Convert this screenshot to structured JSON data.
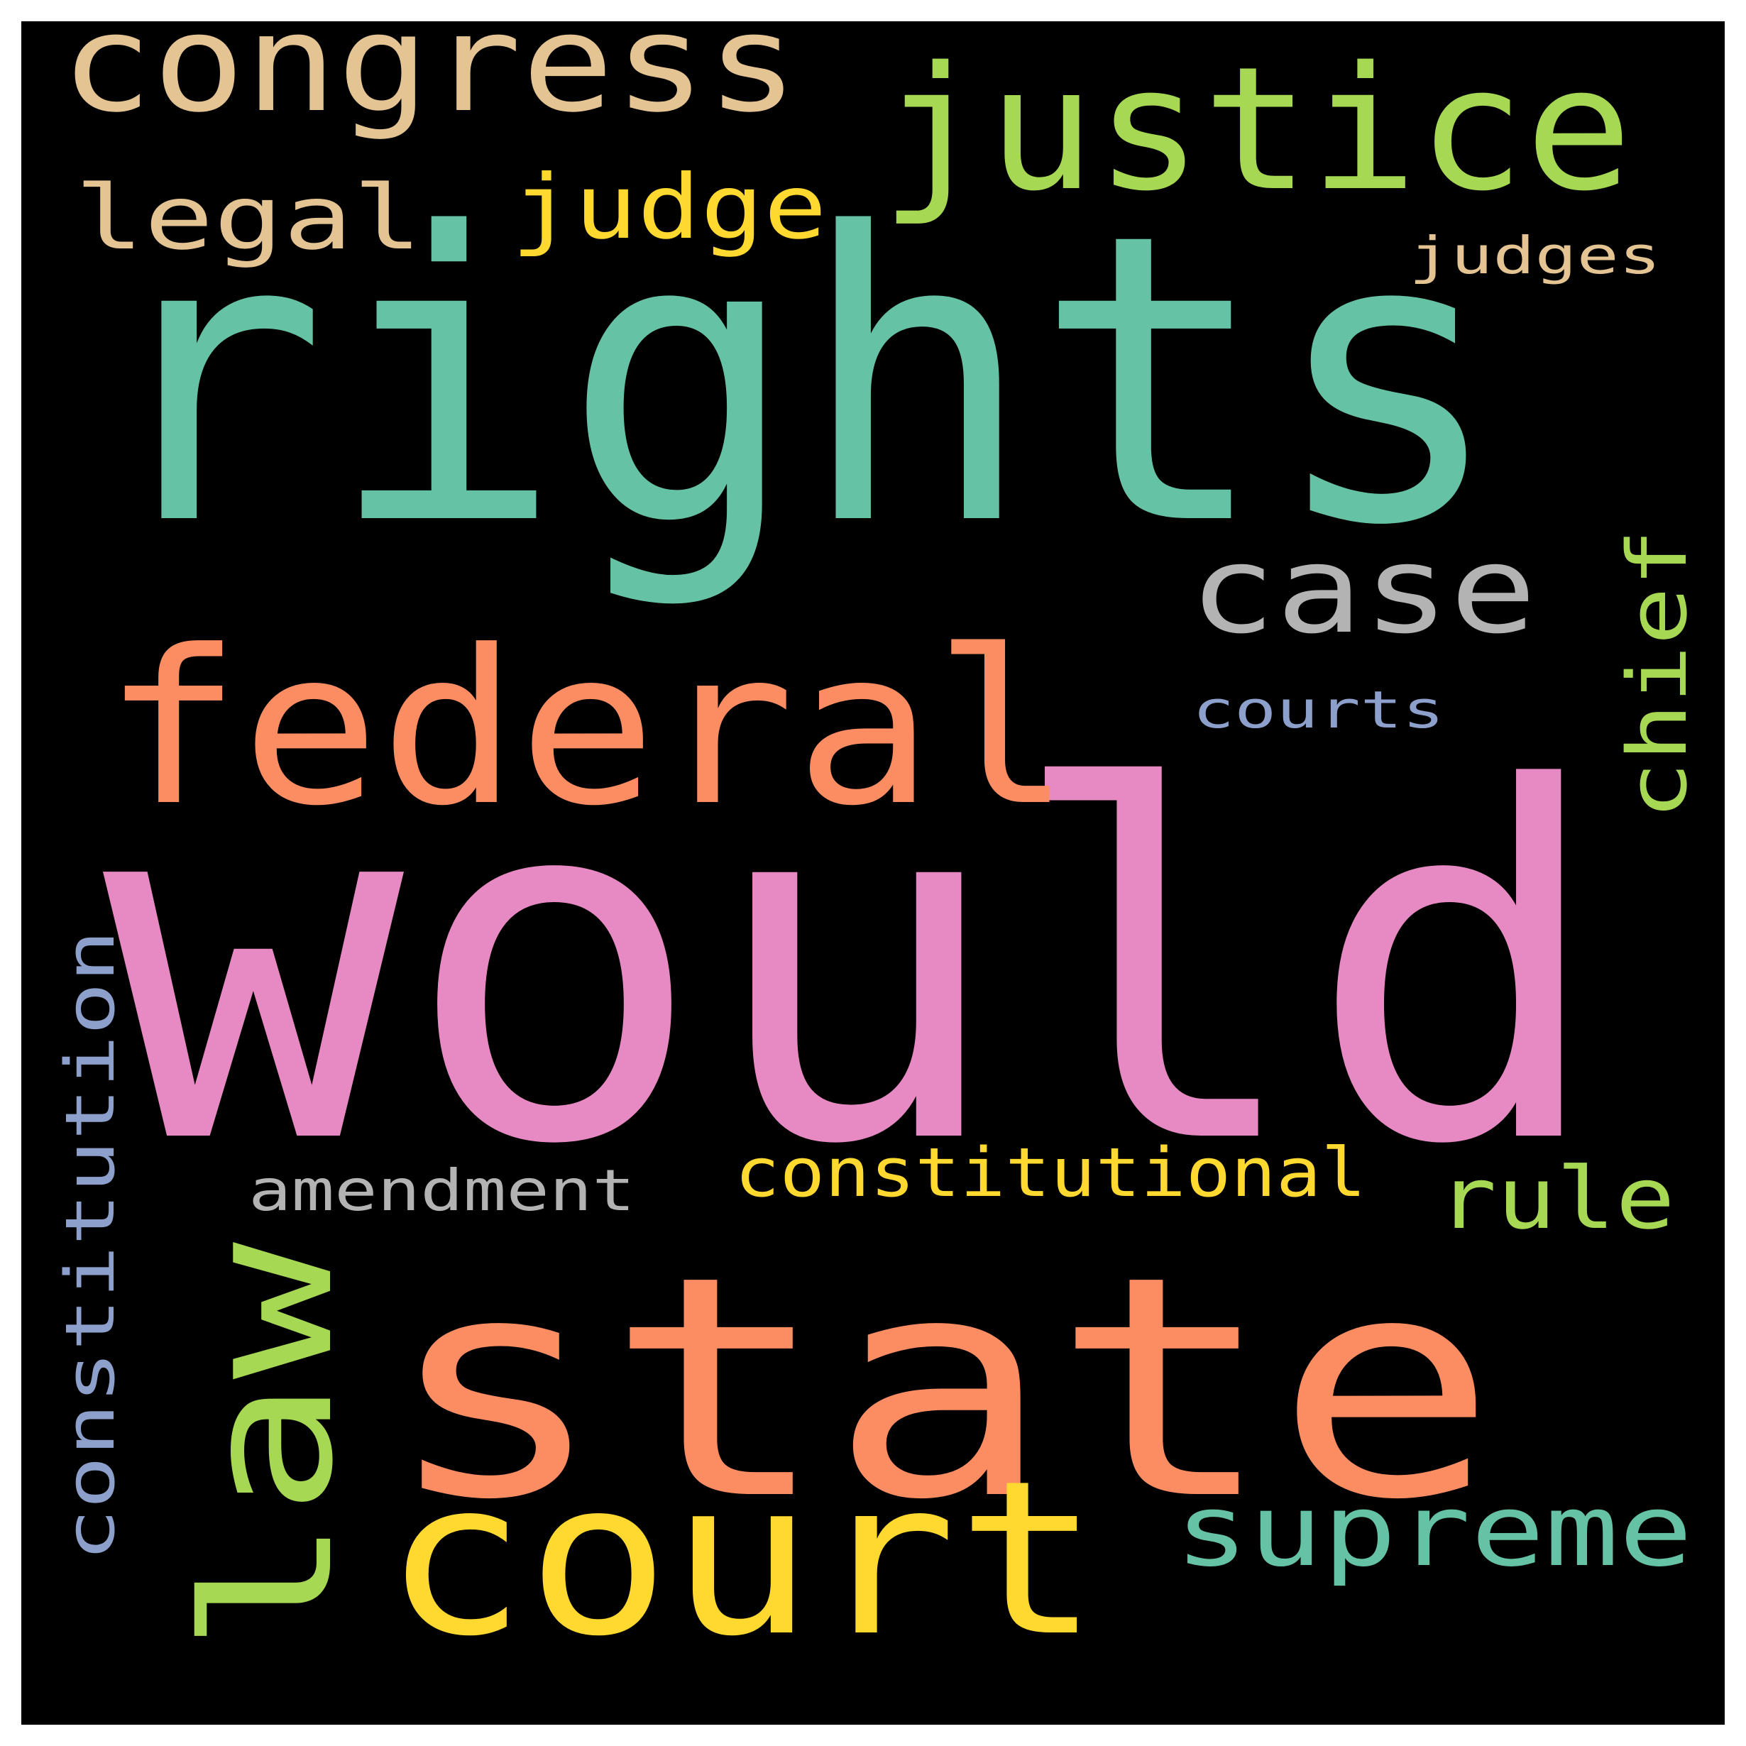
{
  "background": "#000000",
  "words": [
    {
      "text": "would",
      "color": "#e78ac3"
    },
    {
      "text": "rights",
      "color": "#66c2a5"
    },
    {
      "text": "state",
      "color": "#fc8d62"
    },
    {
      "text": "federal",
      "color": "#fc8d62"
    },
    {
      "text": "court",
      "color": "#ffd92f"
    },
    {
      "text": "law",
      "color": "#a6d854"
    },
    {
      "text": "justice",
      "color": "#a6d854"
    },
    {
      "text": "congress",
      "color": "#e5c494"
    },
    {
      "text": "case",
      "color": "#b3b3b3"
    },
    {
      "text": "supreme",
      "color": "#66c2a5"
    },
    {
      "text": "judge",
      "color": "#ffd92f"
    },
    {
      "text": "legal",
      "color": "#e5c494"
    },
    {
      "text": "chief",
      "color": "#a6d854"
    },
    {
      "text": "rule",
      "color": "#a6d854"
    },
    {
      "text": "constitution",
      "color": "#8da0cb"
    },
    {
      "text": "constitutional",
      "color": "#ffd92f"
    },
    {
      "text": "amendment",
      "color": "#b3b3b3"
    },
    {
      "text": "judges",
      "color": "#e5c494"
    },
    {
      "text": "courts",
      "color": "#8da0cb"
    }
  ]
}
